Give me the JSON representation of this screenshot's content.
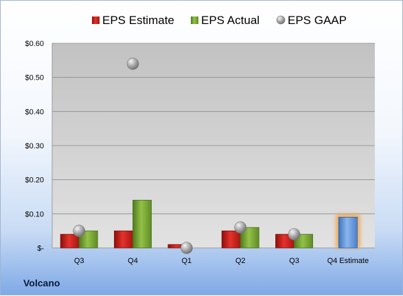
{
  "company_label": "Volcano",
  "chart_data": {
    "type": "bar",
    "categories": [
      "Q3",
      "Q4",
      "Q1",
      "Q2",
      "Q3",
      "Q4 Estimate"
    ],
    "series": [
      {
        "name": "EPS Estimate",
        "values": [
          0.04,
          0.05,
          0.01,
          0.05,
          0.04,
          null
        ],
        "color": "#d42a24"
      },
      {
        "name": "EPS Actual",
        "values": [
          0.05,
          0.14,
          null,
          0.06,
          0.04,
          null
        ],
        "color": "#7fae34"
      },
      {
        "name": "EPS GAAP",
        "values": [
          0.05,
          0.54,
          0.0,
          0.06,
          0.04,
          null
        ],
        "color": "#a6a6a6",
        "marker": "sphere"
      }
    ],
    "estimate_bar": {
      "category": "Q4 Estimate",
      "value": 0.09,
      "color": "#6d9fe0",
      "glow": "#f0a040"
    },
    "ylim": [
      0,
      0.6
    ],
    "yticks": [
      0,
      0.1,
      0.2,
      0.3,
      0.4,
      0.5,
      0.6
    ],
    "ytick_labels": [
      "$-",
      "$0.10",
      "$0.20",
      "$0.30",
      "$0.40",
      "$0.50",
      "$0.60"
    ],
    "legend_position": "top",
    "grid": true
  }
}
